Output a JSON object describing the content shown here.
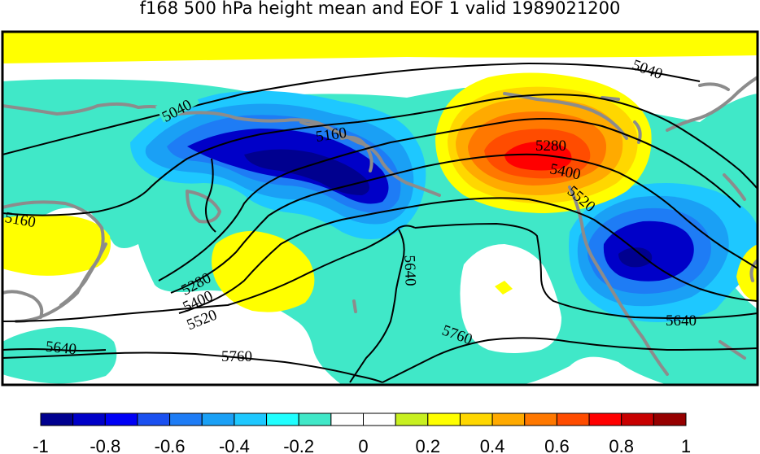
{
  "title": "f168 500 hPa height mean and EOF 1 valid 1989021200",
  "contour_labels": [
    "5040",
    "5040",
    "5160",
    "5160",
    "5280",
    "5280",
    "5400",
    "5400",
    "5520",
    "5520",
    "5640",
    "5640",
    "5640",
    "5760",
    "5760"
  ],
  "colorbar": {
    "colors": [
      "#00008f",
      "#0000c8",
      "#0000f5",
      "#1a50f0",
      "#1e7cf5",
      "#1aa0f5",
      "#1ec8ff",
      "#20ffff",
      "#40e8c8",
      "#ffffff",
      "#ffffff",
      "#c8f020",
      "#ffff00",
      "#ffd700",
      "#ffaa00",
      "#ff7800",
      "#ff4c00",
      "#ff0000",
      "#c80000",
      "#960000"
    ],
    "tick_labels": [
      "-1",
      "-0.8",
      "-0.6",
      "-0.4",
      "-0.2",
      "0",
      "0.2",
      "0.4",
      "0.6",
      "0.8",
      "1"
    ]
  },
  "palette": {
    "coast": "#8c8c8c",
    "contour": "#000000",
    "cyan": "#40e8c8",
    "light_blue": "#1ec8ff",
    "mid_blue": "#1aa0f5",
    "blue": "#1e7cf5",
    "deep_blue": "#0000c8",
    "navy": "#00008f",
    "yellow": "#ffff00",
    "gold": "#ffd700",
    "orange": "#ffaa00",
    "dark_orange": "#ff7800",
    "red_orange": "#ff4c00",
    "red": "#ff0000"
  }
}
